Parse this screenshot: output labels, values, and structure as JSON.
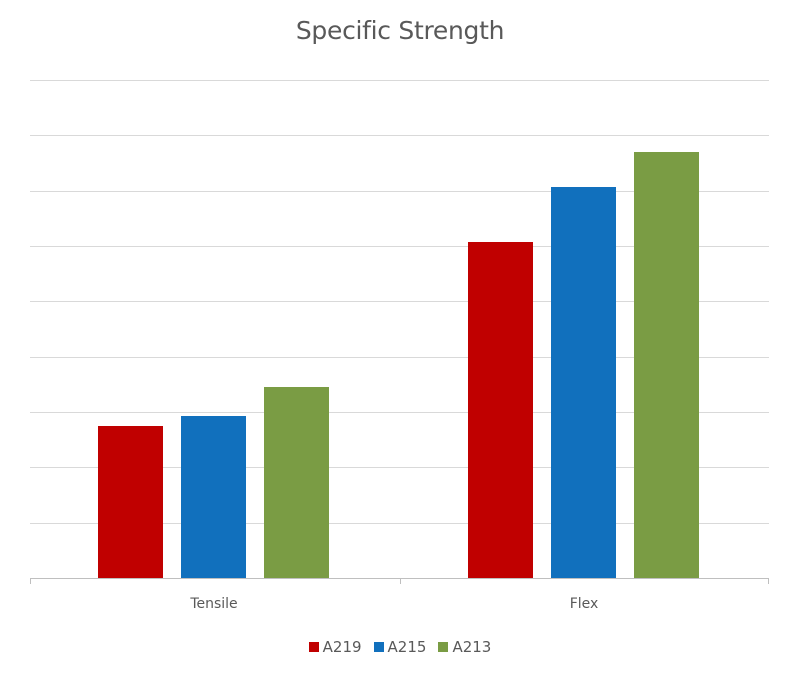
{
  "chart_data": {
    "type": "bar",
    "title": "Specific Strength",
    "xlabel": "",
    "ylabel": "",
    "categories": [
      "Tensile",
      "Flex"
    ],
    "series": [
      {
        "name": "A219",
        "color": "#c00000",
        "values": [
          2.75,
          6.08
        ]
      },
      {
        "name": "A215",
        "color": "#1170bd",
        "values": [
          2.93,
          7.07
        ]
      },
      {
        "name": "A213",
        "color": "#7a9c44",
        "values": [
          3.45,
          7.7
        ]
      }
    ],
    "ylim": [
      0,
      9
    ],
    "y_ticks_labeled": false,
    "grid": true,
    "gridline_count": 9,
    "legend_position": "bottom"
  },
  "title": "Specific Strength",
  "legend": [
    {
      "label": "A219",
      "color": "#c00000"
    },
    {
      "label": "A215",
      "color": "#1170bd"
    },
    {
      "label": "A213",
      "color": "#7a9c44"
    }
  ],
  "categories": [
    "Tensile",
    "Flex"
  ]
}
